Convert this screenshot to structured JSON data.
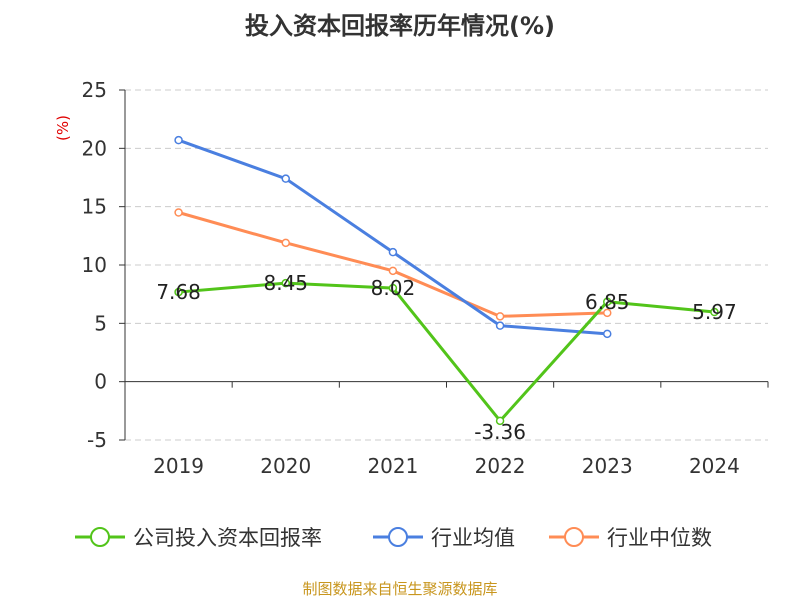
{
  "chart_data": {
    "type": "line",
    "title": "投入资本回报率历年情况(%)",
    "ylabel": "(%)",
    "xlabel": "",
    "categories": [
      "2019",
      "2020",
      "2021",
      "2022",
      "2023",
      "2024"
    ],
    "ylim": [
      -5,
      25
    ],
    "yticks": [
      -5,
      0,
      5,
      10,
      15,
      20,
      25
    ],
    "grid": true,
    "legend_position": "bottom",
    "series": [
      {
        "name": "公司投入资本回报率",
        "color": "#52c41a",
        "values": [
          7.68,
          8.45,
          8.02,
          -3.36,
          6.85,
          5.97
        ],
        "labels": [
          "7.68",
          "8.45",
          "8.02",
          "-3.36",
          "6.85",
          "5.97"
        ]
      },
      {
        "name": "行业均值",
        "color": "#4a7fe0",
        "values": [
          20.7,
          17.4,
          11.1,
          4.8,
          4.1,
          null
        ]
      },
      {
        "name": "行业中位数",
        "color": "#ff8c55",
        "values": [
          14.5,
          11.9,
          9.5,
          5.6,
          5.9,
          null
        ]
      }
    ]
  },
  "footer": "制图数据来自恒生聚源数据库"
}
